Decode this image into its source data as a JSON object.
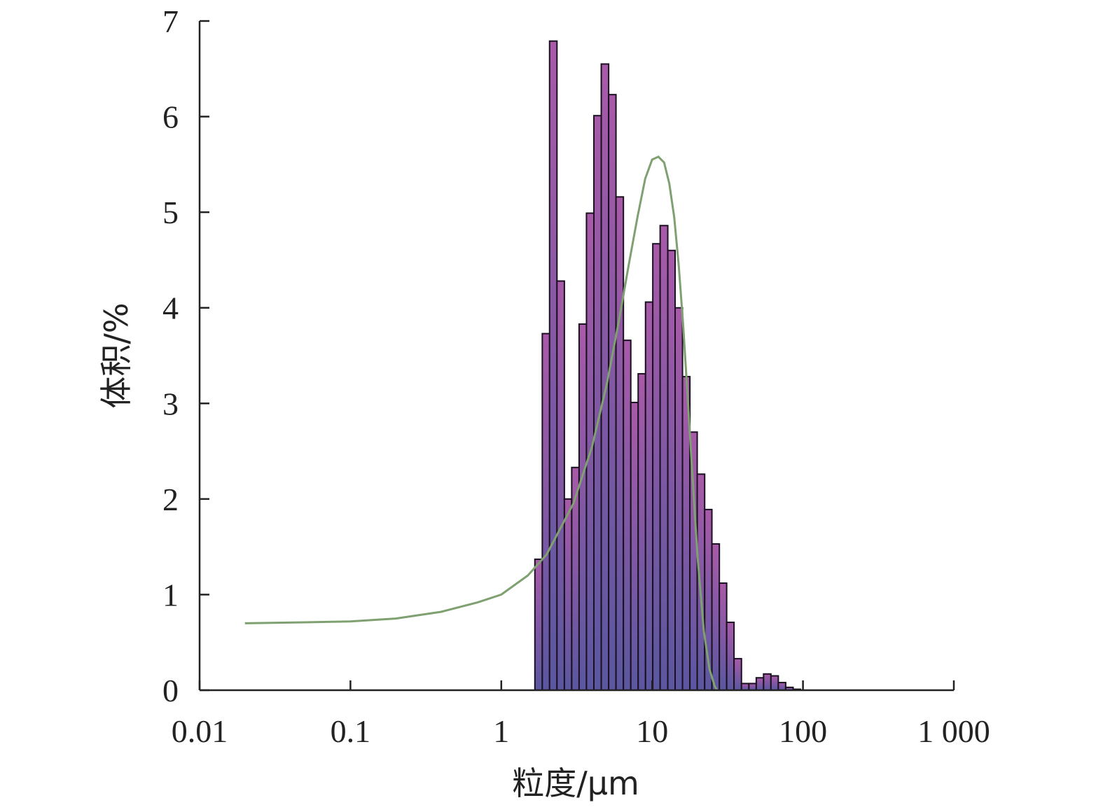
{
  "chart_data": {
    "type": "bar",
    "xlabel": "粒度/μm",
    "ylabel": "体积/%",
    "x_scale": "log",
    "xlim": [
      0.01,
      1000
    ],
    "ylim": [
      0,
      7
    ],
    "x_ticks": [
      {
        "value": 0.01,
        "label": "0.01"
      },
      {
        "value": 0.1,
        "label": "0.1"
      },
      {
        "value": 1,
        "label": "1"
      },
      {
        "value": 10,
        "label": "10"
      },
      {
        "value": 100,
        "label": "100"
      },
      {
        "value": 1000,
        "label": "1 000"
      }
    ],
    "y_ticks": [
      {
        "value": 0,
        "label": "0"
      },
      {
        "value": 1,
        "label": "1"
      },
      {
        "value": 2,
        "label": "2"
      },
      {
        "value": 3,
        "label": "3"
      },
      {
        "value": 4,
        "label": "4"
      },
      {
        "value": 5,
        "label": "5"
      },
      {
        "value": 6,
        "label": "6"
      },
      {
        "value": 7,
        "label": "7"
      }
    ],
    "grid": false,
    "histogram": {
      "bin_edges": [
        1.67,
        1.87,
        2.09,
        2.34,
        2.62,
        2.93,
        3.28,
        3.67,
        4.11,
        4.6,
        5.15,
        5.76,
        6.45,
        7.22,
        8.08,
        9.04,
        10.1,
        11.3,
        12.7,
        14.2,
        15.9,
        17.8,
        19.9,
        22.3,
        24.9,
        27.9,
        31.2,
        34.9,
        39.1,
        43.8,
        49.0,
        54.8,
        61.3,
        68.6,
        76.8,
        86.0,
        96.2
      ],
      "values": [
        1.37,
        3.73,
        6.79,
        4.28,
        2.0,
        2.33,
        3.83,
        4.99,
        6.01,
        6.55,
        6.23,
        5.16,
        3.66,
        3.01,
        3.31,
        4.06,
        4.67,
        4.86,
        4.6,
        4.0,
        3.28,
        2.7,
        2.26,
        1.89,
        1.53,
        1.12,
        0.71,
        0.33,
        0.07,
        0.07,
        0.13,
        0.17,
        0.15,
        0.08,
        0.03,
        0.01
      ]
    },
    "curve": {
      "x": [
        0.02,
        0.05,
        0.1,
        0.2,
        0.4,
        0.7,
        1.0,
        1.5,
        2.0,
        3.0,
        4.0,
        5.0,
        6.0,
        7.0,
        8.0,
        9.0,
        10.0,
        11.0,
        12.0,
        13.0,
        14.0,
        15.0,
        16.0,
        17.0,
        18.0,
        20.0,
        22.0,
        24.0,
        26.0,
        27.0
      ],
      "y": [
        0.7,
        0.71,
        0.72,
        0.75,
        0.82,
        0.92,
        1.0,
        1.2,
        1.42,
        1.95,
        2.55,
        3.2,
        3.85,
        4.45,
        4.95,
        5.35,
        5.55,
        5.58,
        5.52,
        5.3,
        4.95,
        4.45,
        3.85,
        3.2,
        2.55,
        1.4,
        0.62,
        0.22,
        0.04,
        0.0
      ],
      "color": "#7fa070"
    },
    "colors": {
      "bar_top": "#a85aa8",
      "bar_bottom": "#5a57a0",
      "bar_edge": "#1a1020",
      "axis": "#222222"
    }
  }
}
